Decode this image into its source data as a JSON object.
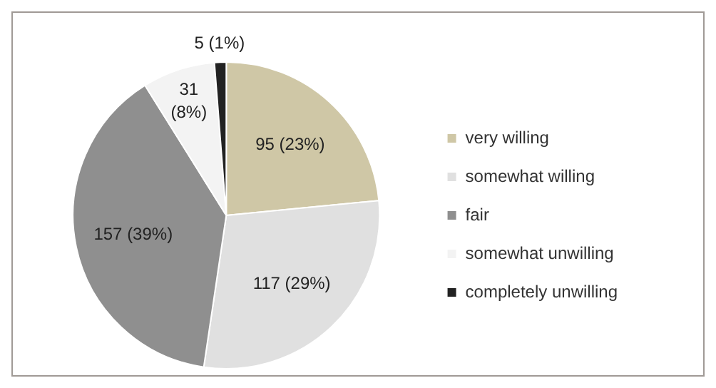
{
  "chart_data": {
    "type": "pie",
    "categories": [
      "very willing",
      "somewhat willing",
      "fair",
      "somewhat unwilling",
      "completely unwilling"
    ],
    "values": [
      95,
      117,
      157,
      31,
      5
    ],
    "colors": [
      "#cfc7a6",
      "#e0e0e0",
      "#8f8f8f",
      "#f3f3f3",
      "#222222"
    ],
    "value_labels": [
      "95 (23%)",
      "117 (29%)",
      "157 (39%)",
      "31 (8%)",
      "5 (1%)"
    ],
    "legend": "right"
  }
}
